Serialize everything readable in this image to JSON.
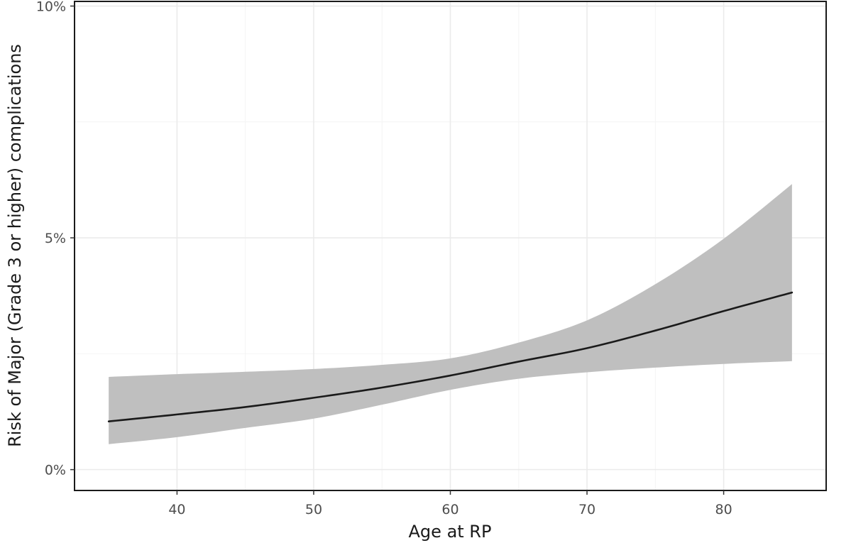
{
  "chart_data": {
    "type": "area",
    "title": "",
    "xlabel": "Age at RP",
    "ylabel": "Risk of Major (Grade 3 or higher) complications",
    "xlim": [
      32.5,
      87.5
    ],
    "ylim": [
      -0.45,
      10.1
    ],
    "x_ticks": [
      40,
      50,
      60,
      70,
      80
    ],
    "x_tick_labels": [
      "40",
      "50",
      "60",
      "70",
      "80"
    ],
    "y_ticks": [
      0,
      5,
      10
    ],
    "y_tick_labels": [
      "0%",
      "5%",
      "10%"
    ],
    "grid": true,
    "legend": "none",
    "series": [
      {
        "type": "line",
        "x": [
          35,
          40,
          45,
          50,
          55,
          60,
          65,
          70,
          75,
          80,
          85
        ],
        "values": [
          1.04,
          1.19,
          1.35,
          1.55,
          1.77,
          2.03,
          2.33,
          2.62,
          3.0,
          3.42,
          3.82
        ]
      },
      {
        "type": "ribbon",
        "x": [
          35,
          40,
          45,
          50,
          55,
          60,
          65,
          70,
          75,
          80,
          85
        ],
        "lower": [
          0.55,
          0.7,
          0.9,
          1.1,
          1.4,
          1.72,
          1.96,
          2.1,
          2.2,
          2.28,
          2.34
        ],
        "upper": [
          2.0,
          2.06,
          2.11,
          2.17,
          2.26,
          2.4,
          2.74,
          3.22,
          4.0,
          4.98,
          6.16
        ]
      }
    ],
    "colors": {
      "line": "#1a1a1a",
      "ribbon": "#bfbfbf",
      "frame": "#1a1a1a"
    }
  }
}
